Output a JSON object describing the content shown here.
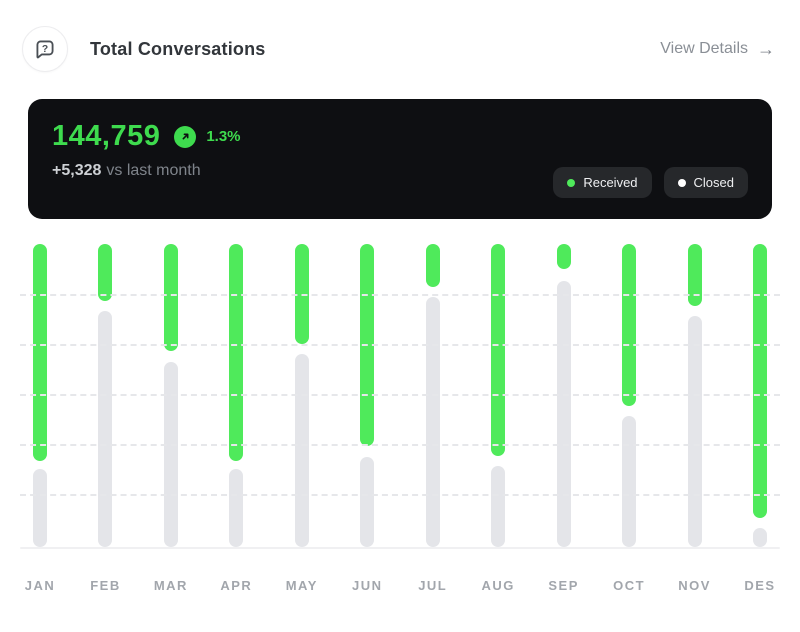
{
  "header": {
    "title": "Total Conversations",
    "icon": "chat-question-icon",
    "view_details_label": "View Details",
    "view_details_arrow": "→"
  },
  "stats": {
    "total": "144,759",
    "growth_pct": "1.3%",
    "delta": "+5,328",
    "delta_suffix": "vs last month",
    "legend": [
      {
        "label": "Received",
        "color": "#4fea5b"
      },
      {
        "label": "Closed",
        "color": "#ffffff"
      }
    ]
  },
  "chart_data": {
    "type": "bar",
    "subtype": "top-down stacked columns, green segment grows from top, gray segment fills to baseline",
    "title": "Total Conversations by month",
    "categories": [
      "JAN",
      "FEB",
      "MAR",
      "APR",
      "MAY",
      "JUN",
      "JUL",
      "AUG",
      "SEP",
      "OCT",
      "NOV",
      "DES"
    ],
    "series": [
      {
        "name": "Received",
        "color": "#4fea5b",
        "values_pct": [
          71.6,
          18.8,
          35.3,
          71.6,
          33.0,
          66.7,
          14.2,
          70.0,
          8.3,
          53.5,
          20.5,
          90.4
        ]
      },
      {
        "name": "Closed",
        "color": "#e4e5e9",
        "values_pct": [
          25.7,
          77.9,
          61.1,
          25.7,
          63.7,
          29.7,
          82.5,
          26.7,
          87.8,
          43.2,
          76.2,
          6.3
        ]
      }
    ],
    "value_axis": "unlabeled, percentage of column height",
    "gridlines": {
      "count": 5,
      "spacing_pct": 16.5,
      "style": "dashed horizontal"
    },
    "legend_position": "inside stat card, top right",
    "xlabel": "",
    "ylabel": ""
  },
  "colors": {
    "page_bg": "#ffffff",
    "card_bg": "#0e0f12",
    "accent_green_text": "#3edb4e",
    "accent_green_bar": "#4fea5b",
    "closed_bar_gray": "#e4e5e9",
    "pill_bg": "#26282b",
    "muted_text": "#8a8f96"
  }
}
